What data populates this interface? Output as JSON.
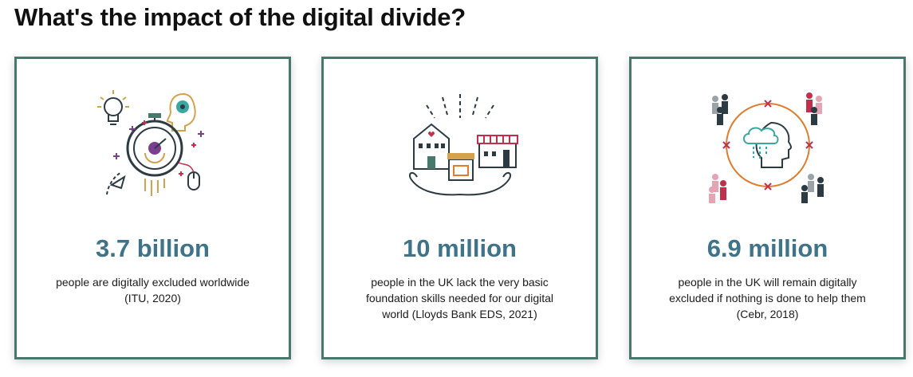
{
  "page": {
    "title": "What's the impact of the digital divide?"
  },
  "colors": {
    "card_border": "#46786c",
    "stat_text": "#3f7389",
    "accent_purple": "#7a3f8f",
    "accent_teal": "#3aa7a0",
    "accent_gold": "#d3a24a",
    "accent_red": "#c0304a",
    "accent_orange": "#e07c2e",
    "accent_pink": "#e4a4b4",
    "dark": "#2c3a44"
  },
  "cards": [
    {
      "icon": "idea-timer-illustration",
      "stat": "3.7 billion",
      "desc_lines": [
        "people are digitally excluded worldwide",
        "(ITU, 2020)"
      ]
    },
    {
      "icon": "community-hands-illustration",
      "stat": "10 million",
      "desc_lines": [
        "people in the UK lack the very basic",
        "foundation skills needed for our digital",
        "world (Lloyds Bank EDS, 2021)"
      ]
    },
    {
      "icon": "isolated-head-illustration",
      "stat": "6.9 million",
      "desc_lines": [
        "people in the UK will remain digitally",
        "excluded if nothing is done to help them",
        "(Cebr, 2018)"
      ]
    }
  ]
}
